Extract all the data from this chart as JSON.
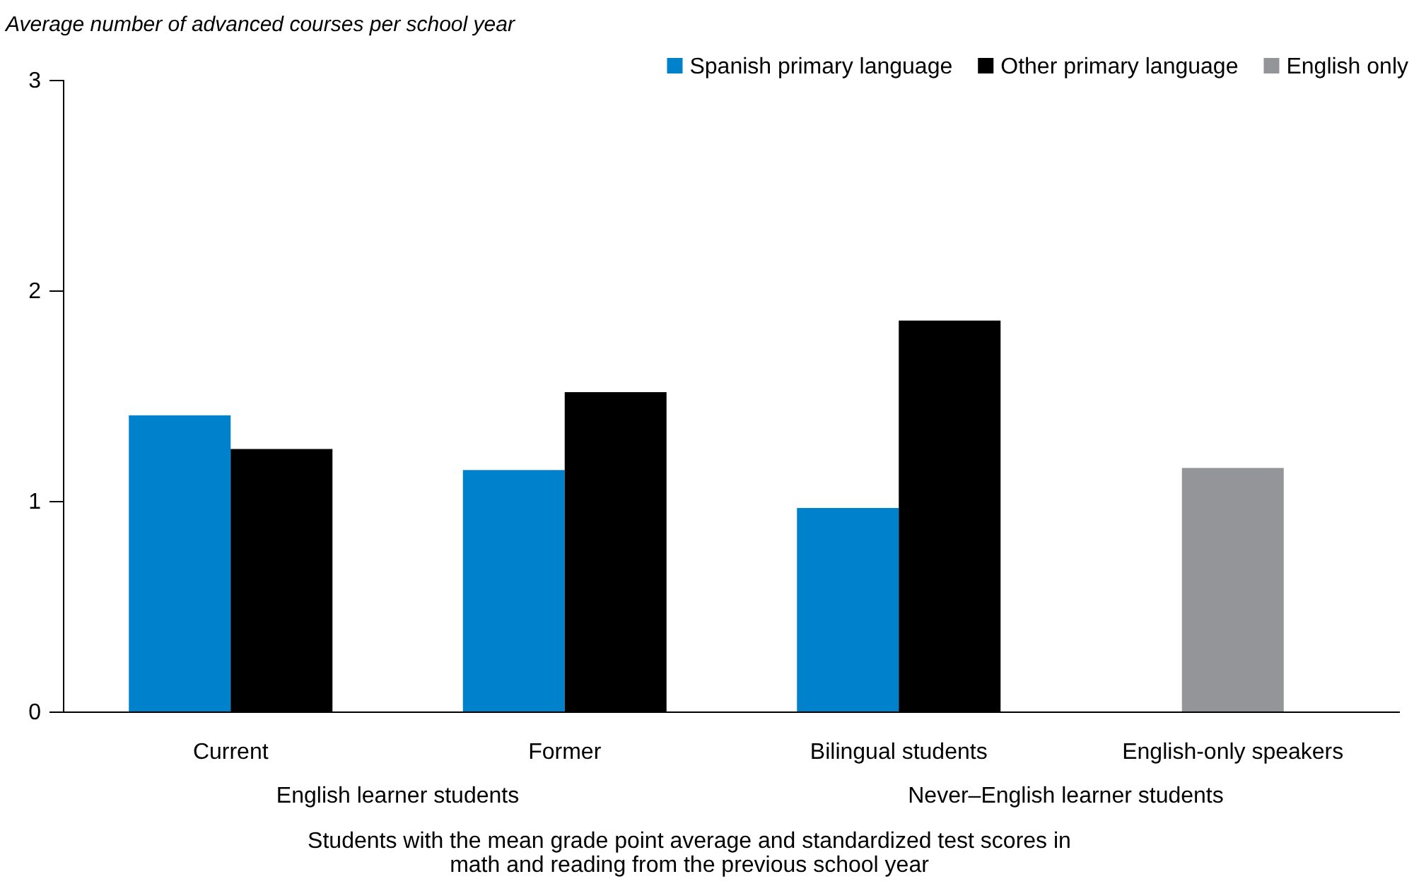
{
  "chart_data": {
    "type": "bar",
    "ylabel": "Average number of advanced courses per school year",
    "xlabel": "Students with the mean grade point average and standardized test scores in math and reading from the previous school year",
    "categories": [
      "Current",
      "Former",
      "Bilingual students",
      "English-only speakers"
    ],
    "series": [
      {
        "name": "Spanish primary language",
        "color": "#0081cc",
        "values": [
          1.41,
          1.15,
          0.97,
          null
        ]
      },
      {
        "name": "Other primary language",
        "color": "#000000",
        "values": [
          1.25,
          1.52,
          1.86,
          null
        ]
      },
      {
        "name": "English only",
        "color": "#939598",
        "values": [
          null,
          null,
          null,
          1.16
        ]
      }
    ],
    "ylim": [
      0,
      3
    ],
    "yticks": [
      0,
      1,
      2,
      3
    ],
    "grid": false,
    "legend": "top right",
    "annotations": [
      "English learner students",
      "Never–English learner students"
    ]
  }
}
